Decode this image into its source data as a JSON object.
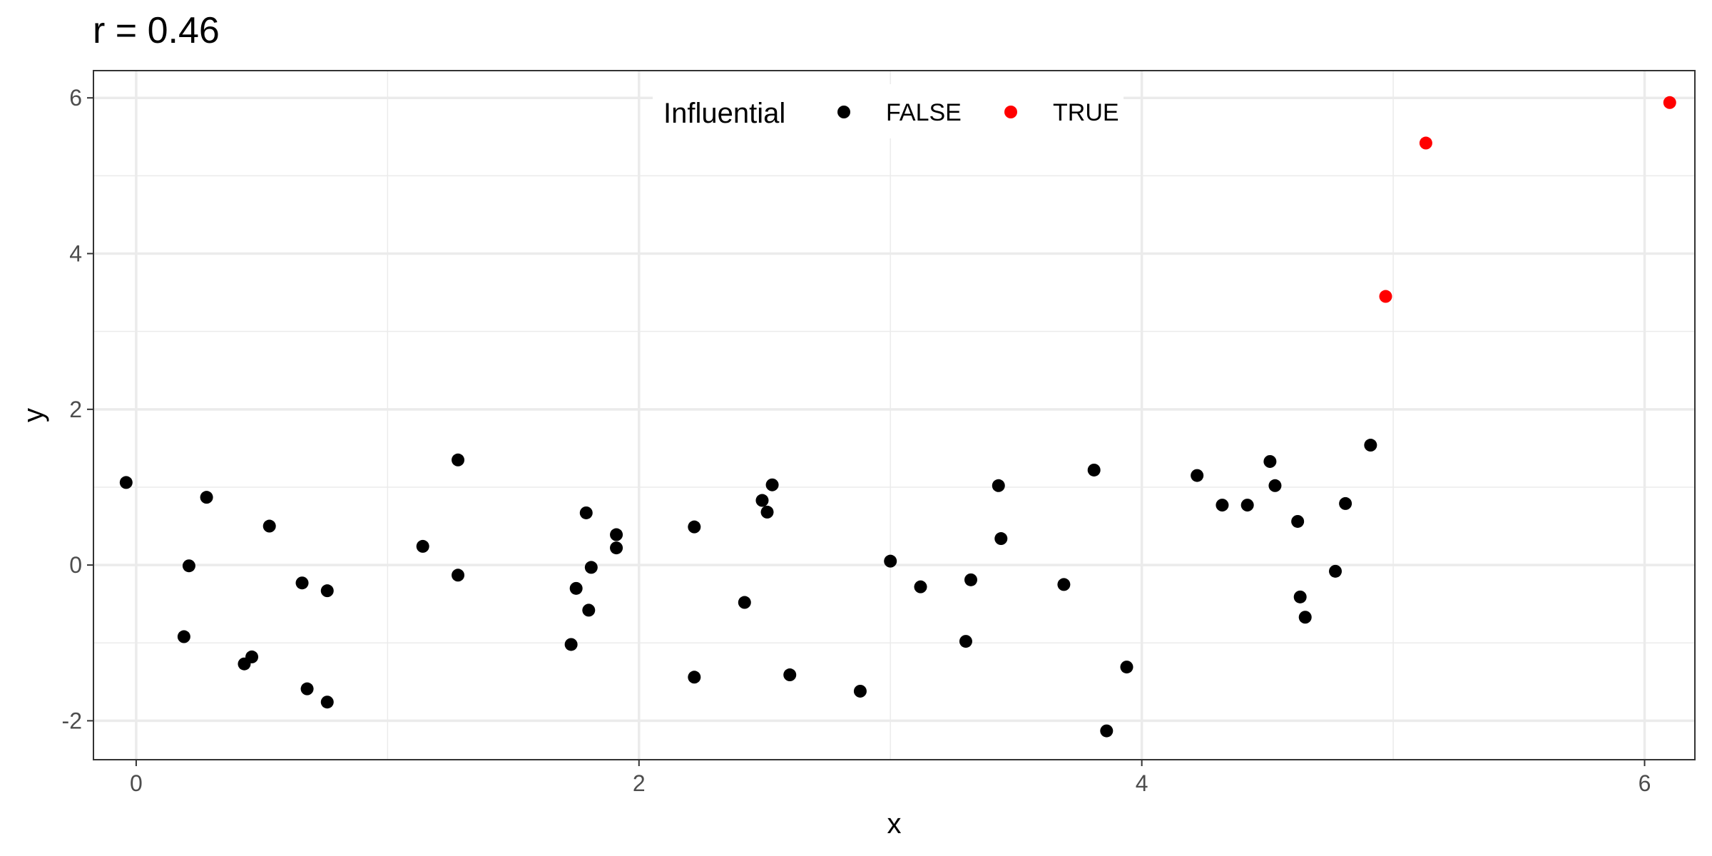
{
  "chart_data": {
    "type": "scatter",
    "title": "r = 0.46",
    "xlabel": "x",
    "ylabel": "y",
    "xlim": [
      -0.17,
      6.2
    ],
    "ylim": [
      -2.5,
      6.35
    ],
    "x_ticks": [
      0,
      2,
      4,
      6
    ],
    "y_ticks": [
      -2,
      0,
      2,
      4,
      6
    ],
    "x_tick_labels": [
      "0",
      "2",
      "4",
      "6"
    ],
    "y_tick_labels": [
      "-2",
      "0",
      "2",
      "4",
      "6"
    ],
    "grid": true,
    "legend": {
      "title": "Influential",
      "position": "top-center-inside",
      "entries": [
        {
          "label": "FALSE",
          "color": "#000000"
        },
        {
          "label": "TRUE",
          "color": "#ff0000"
        }
      ]
    },
    "series": [
      {
        "name": "FALSE",
        "color": "#000000",
        "points": [
          [
            -0.04,
            1.06
          ],
          [
            0.19,
            -0.92
          ],
          [
            0.21,
            -0.01
          ],
          [
            0.28,
            0.87
          ],
          [
            0.43,
            -1.27
          ],
          [
            0.46,
            -1.18
          ],
          [
            0.53,
            0.5
          ],
          [
            0.66,
            -0.23
          ],
          [
            0.68,
            -1.59
          ],
          [
            0.76,
            -0.33
          ],
          [
            0.76,
            -1.76
          ],
          [
            1.14,
            0.24
          ],
          [
            1.28,
            1.35
          ],
          [
            1.28,
            -0.13
          ],
          [
            1.73,
            -1.02
          ],
          [
            1.75,
            -0.3
          ],
          [
            1.79,
            0.67
          ],
          [
            1.8,
            -0.58
          ],
          [
            1.81,
            -0.03
          ],
          [
            1.91,
            0.39
          ],
          [
            1.91,
            0.22
          ],
          [
            2.22,
            0.49
          ],
          [
            2.22,
            -1.44
          ],
          [
            2.42,
            -0.48
          ],
          [
            2.49,
            0.83
          ],
          [
            2.51,
            0.68
          ],
          [
            2.53,
            1.03
          ],
          [
            2.6,
            -1.41
          ],
          [
            2.88,
            -1.62
          ],
          [
            3.0,
            0.05
          ],
          [
            3.12,
            -0.28
          ],
          [
            3.3,
            -0.98
          ],
          [
            3.32,
            -0.19
          ],
          [
            3.43,
            1.02
          ],
          [
            3.44,
            0.34
          ],
          [
            3.69,
            -0.25
          ],
          [
            3.81,
            1.22
          ],
          [
            3.86,
            -2.13
          ],
          [
            3.94,
            -1.31
          ],
          [
            4.22,
            1.15
          ],
          [
            4.32,
            0.77
          ],
          [
            4.42,
            0.77
          ],
          [
            4.51,
            1.33
          ],
          [
            4.53,
            1.02
          ],
          [
            4.62,
            0.56
          ],
          [
            4.63,
            -0.41
          ],
          [
            4.65,
            -0.67
          ],
          [
            4.77,
            -0.08
          ],
          [
            4.81,
            0.79
          ],
          [
            4.91,
            1.54
          ]
        ]
      },
      {
        "name": "TRUE",
        "color": "#ff0000",
        "points": [
          [
            4.97,
            3.45
          ],
          [
            5.13,
            5.42
          ],
          [
            6.1,
            5.94
          ]
        ]
      }
    ]
  }
}
